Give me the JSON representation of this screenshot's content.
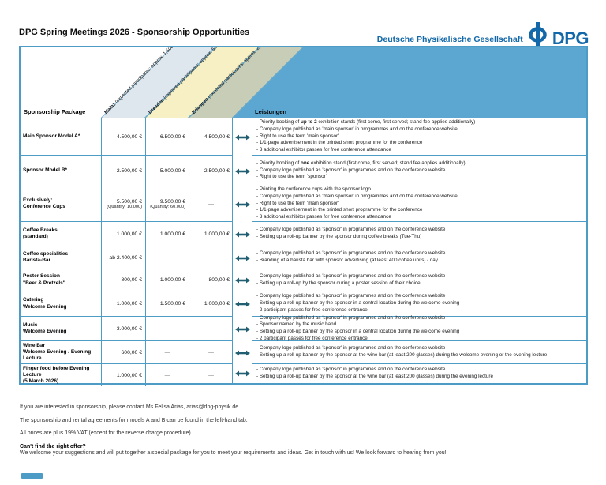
{
  "page": {
    "title": "DPG Spring Meetings 2026 - Sponsorship Opportunities",
    "brand": {
      "org": "Deutsche Physikalische Gesellschaft",
      "abbr": "DPG"
    }
  },
  "colors": {
    "dpg_blue": "#1268a8",
    "table_border_blue": "#4d9cc6",
    "header_fill_blue": "#5ba7d1",
    "band_mainz": "#dee6ee",
    "band_dresden": "#f6f0c4",
    "band_erlangen": "#c7cdb6",
    "arrow_teal": "#205f72"
  },
  "table": {
    "package_header": "Sponsorship Package",
    "services_header": "Leistungen",
    "cities": [
      {
        "name": "Mainz",
        "detail": "(expected participants: approx. 1,500)"
      },
      {
        "name": "Dresden",
        "detail": "(expected participants: approx. 5,500)"
      },
      {
        "name": "Erlangen",
        "detail": "(expected participants: approx. 2,000)"
      }
    ],
    "rows": [
      {
        "package": "Main Sponsor Model A*",
        "prices": [
          {
            "v": "4.500,00 €"
          },
          {
            "v": "6.500,00 €"
          },
          {
            "v": "4.500,00 €"
          }
        ],
        "services": [
          "Priority booking of **up to 2** exhibition stands (first come, first served; stand fee applies additionally)",
          "Company logo published as 'main sponsor' in programmes and on the conference website",
          "Right to use the term 'main sponsor'",
          "1/1-page advertisement in the printed short programme for the conference",
          "3 additional exhibitor passes for free conference attendance"
        ]
      },
      {
        "package": "Sponsor Model B*",
        "prices": [
          {
            "v": "2.500,00 €"
          },
          {
            "v": "5.000,00 €"
          },
          {
            "v": "2.500,00 €"
          }
        ],
        "services": [
          "Priority booking of **one** exhibition stand (first come, first served; stand fee applies additionally)",
          "Company logo published as 'sponsor' in programmes and on the conference website",
          "Right to use the term 'sponsor'"
        ]
      },
      {
        "package": "Exclusively:\nConference Cups",
        "prices": [
          {
            "v": "5.500,00 €",
            "note": "(Quantity: 10.000)"
          },
          {
            "v": "9.500,00 €",
            "note": "(Quantity: 60.000)"
          },
          {
            "v": "—"
          }
        ],
        "services": [
          "Printing the conference cups with the sponsor logo",
          "Company logo published as 'main sponsor' in programmes and on the conference website",
          "Right to use the term 'main sponsor'",
          "1/1-page advertisement in the printed short programme for the conference",
          "3 additional exhibitor passes for free conference attendance"
        ]
      },
      {
        "package": "Coffee Breaks\n(standard)",
        "prices": [
          {
            "v": "1.000,00 €"
          },
          {
            "v": "1.000,00 €"
          },
          {
            "v": "1.000,00 €"
          }
        ],
        "services": [
          "Company logo published as 'sponsor' in programmes and on the conference website",
          "Setting up a roll-up banner by the sponsor during coffee breaks (Tue-Thu)"
        ]
      },
      {
        "package": "Coffee specialities\nBarista-Bar",
        "prices": [
          {
            "v": "ab 2.400,00 €"
          },
          {
            "v": "—"
          },
          {
            "v": "—"
          }
        ],
        "services": [
          "Company logo published as 'sponsor' in programmes and on the conference website",
          "Branding of a barista bar with sponsor advertising (at least 400 coffee units) / day"
        ]
      },
      {
        "package": "Poster Session\n\"Beer & Pretzels\"",
        "prices": [
          {
            "v": "800,00 €"
          },
          {
            "v": "1.000,00 €"
          },
          {
            "v": "800,00 €"
          }
        ],
        "services": [
          "Company logo published as 'sponsor' in programmes and on the conference website",
          "Setting up a roll-up by the sponsor during a poster session of their choice"
        ]
      },
      {
        "package": "Catering\nWelcome Evening",
        "prices": [
          {
            "v": "1.000,00 €"
          },
          {
            "v": "1.500,00 €"
          },
          {
            "v": "1.000,00 €"
          }
        ],
        "services": [
          "Company logo published as 'sponsor' in programmes and on the conference website",
          "Setting up a roll-up banner by the sponsor in a central location during the welcome evening",
          "2 participant passes for free conference entrance"
        ]
      },
      {
        "package": "Music\nWelcome Evening",
        "prices": [
          {
            "v": "3.000,00 €"
          },
          {
            "v": "—"
          },
          {
            "v": "—"
          }
        ],
        "services": [
          "Company logo published as 'sponsor' in programmes and on the conference website",
          "Sponsor named by the music band",
          "Setting up a roll-up banner by the sponsor in a central location during the welcome evening",
          "2 participant passes for free conference entrance"
        ]
      },
      {
        "package": "Wine Bar\nWelcome Evening / Evening\nLecture",
        "prices": [
          {
            "v": "600,00 €"
          },
          {
            "v": "—"
          },
          {
            "v": "—"
          }
        ],
        "services": [
          "Company logo published as 'sponsor' in programmes and on the conference website",
          "Setting up a roll-up banner by the sponsor at the wine bar (at least 200 glasses) during the welcome evening or the evening lecture"
        ]
      },
      {
        "package": "Finger food before Evening Lecture\n(5 March 2026)",
        "prices": [
          {
            "v": "1.000,00 €"
          },
          {
            "v": "—"
          },
          {
            "v": "—"
          }
        ],
        "services": [
          "Company logo published as 'sponsor' in programmes and on the conference website",
          "Setting up a roll-up banner by the sponsor at the wine bar (at least 200 glasses) during the evening lecture"
        ]
      }
    ]
  },
  "footer": {
    "contact": "If you are interested in sponsorship, please contact Ms Felisa Arias, arias@dpg-physik.de",
    "agreements": "The sponsorship and rental agreements for models A and B can be found in the left-hand tab.",
    "vat": "All prices are plus 19% VAT (except for the reverse charge procedure).",
    "offer_title": "Can't find the right offer?",
    "offer_text": "We welcome your suggestions and will put together a special package for you to meet your requirements and ideas. Get in touch with us! We look forward to hearing from you!"
  }
}
